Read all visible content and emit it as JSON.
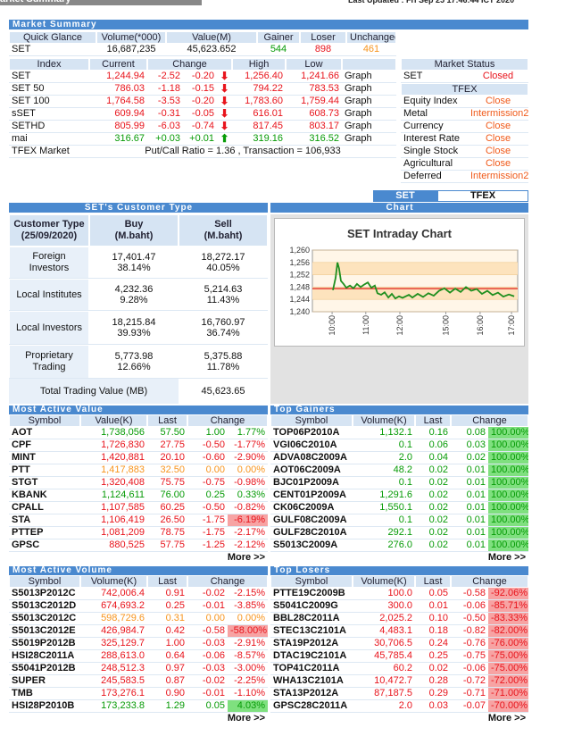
{
  "header": {
    "title": "arket Summary",
    "last_updated": "Last Updated : Fri Sep 25 17:46:44 ICT 2020"
  },
  "market_summary": {
    "title": "Market Summary",
    "quick_glance": {
      "columns": [
        "Quick Glance",
        "Volume(*000)",
        "Value(M)",
        "Gainer",
        "Loser",
        "Unchanged"
      ],
      "rows": [
        [
          "SET",
          "16,687,235",
          "45,623.652",
          "544",
          "898",
          "461"
        ]
      ]
    },
    "index": {
      "columns": [
        "Index",
        "Current",
        "Change",
        "High",
        "Low"
      ],
      "rows": [
        [
          "SET",
          "1,244.94",
          "-2.52",
          "-0.20",
          "1,256.40",
          "1,241.66",
          "Graph"
        ],
        [
          "SET 50",
          "786.03",
          "-1.18",
          "-0.15",
          "794.22",
          "783.53",
          "Graph"
        ],
        [
          "SET 100",
          "1,764.58",
          "-3.53",
          "-0.20",
          "1,783.60",
          "1,759.44",
          "Graph"
        ],
        [
          "sSET",
          "609.94",
          "-0.31",
          "-0.05",
          "616.01",
          "608.73",
          "Graph"
        ],
        [
          "SETHD",
          "805.99",
          "-6.03",
          "-0.74",
          "817.45",
          "803.17",
          "Graph"
        ],
        [
          "mai",
          "316.67",
          "+0.03",
          "+0.01",
          "319.16",
          "316.52",
          "Graph"
        ]
      ],
      "tfex": [
        "TFEX Market",
        "Put/Call Ratio = 1.36 , Transaction = 106,933"
      ]
    },
    "status": {
      "title": "Market Status",
      "rows": [
        [
          "SET",
          "Closed"
        ]
      ],
      "tfex_title": "TFEX",
      "tfex_rows": [
        [
          "Equity Index",
          "Close"
        ],
        [
          "Metal",
          "Intermission2"
        ],
        [
          "Currency",
          "Close"
        ],
        [
          "Interest Rate",
          "Close"
        ],
        [
          "Single Stock",
          "Close"
        ],
        [
          "Agricultural",
          "Close"
        ],
        [
          "Deferred",
          "Intermission2"
        ]
      ]
    }
  },
  "tabs": [
    "SET",
    "TFEX"
  ],
  "customer_type": {
    "title": "SET's Customer Type",
    "columns": [
      "Customer Type\n(25/09/2020)",
      "Buy\n(M.baht)",
      "Sell\n(M.baht)"
    ],
    "rows": [
      [
        "Foreign Investors",
        "17,401.47",
        "38.14%",
        "18,272.17",
        "40.05%"
      ],
      [
        "Local Institutes",
        "4,232.36",
        "9.28%",
        "5,214.63",
        "11.43%"
      ],
      [
        "Local Investors",
        "18,215.84",
        "39.93%",
        "16,760.97",
        "36.74%"
      ],
      [
        "Proprietary\nTrading",
        "5,773.98",
        "12.66%",
        "5,375.88",
        "11.78%"
      ]
    ],
    "total": [
      "Total Trading Value (MB)",
      "45,623.65"
    ]
  },
  "chart": {
    "header": "Chart",
    "chart_data": {
      "type": "line",
      "title": "SET Intraday Chart",
      "color": "#1f8f1f",
      "reference": 1247.5,
      "reference_color": "#e0201c",
      "grid": true,
      "xlim": [
        0,
        100
      ],
      "ylim": [
        1240,
        1260
      ],
      "yticks": [
        {
          "value": 1260,
          "label": "1,260"
        },
        {
          "value": 1256,
          "label": "1,256"
        },
        {
          "value": 1252,
          "label": "1,252"
        },
        {
          "value": 1248,
          "label": "1,248"
        },
        {
          "value": 1244,
          "label": "1,244"
        },
        {
          "value": 1240,
          "label": "1,240"
        }
      ],
      "xticks": [
        {
          "value": 9.6,
          "label": "10:00"
        },
        {
          "value": 26,
          "label": "11:00"
        },
        {
          "value": 42.6,
          "label": "12:00"
        },
        {
          "value": 65,
          "label": "15:00"
        },
        {
          "value": 81.7,
          "label": "16:00"
        },
        {
          "value": 97,
          "label": "17:00"
        }
      ],
      "x": [
        10.0,
        11.3,
        12.2,
        13.0,
        13.9,
        15.2,
        16.5,
        18.3,
        20.0,
        21.7,
        23.5,
        25.2,
        27.0,
        28.7,
        30.4,
        31.7,
        33.5,
        35.2,
        37.0,
        38.7,
        40.4,
        42.2,
        43.9,
        47.0,
        48.7,
        51.3,
        53.9,
        56.5,
        59.1,
        61.7,
        64.3,
        67.0,
        69.6,
        72.2,
        74.8,
        77.4,
        80.0,
        82.6,
        85.2,
        87.8,
        90.4,
        93.0,
        95.7,
        98.3
      ],
      "values": [
        1247,
        1251,
        1256,
        1254,
        1250,
        1249,
        1247.8,
        1248.5,
        1247.6,
        1249,
        1248,
        1248.8,
        1249.5,
        1247.8,
        1248.5,
        1246,
        1245.5,
        1246.3,
        1244.6,
        1245.8,
        1244.3,
        1245,
        1244.5,
        1245.5,
        1244.6,
        1245.8,
        1244.8,
        1246,
        1245.2,
        1246.8,
        1247.6,
        1246.2,
        1247.5,
        1246.4,
        1248,
        1246.8,
        1247.4,
        1245.8,
        1246.8,
        1245.4,
        1246.2,
        1244.9,
        1245.6,
        1245
      ]
    }
  },
  "active_value": {
    "title": "Most Active Value",
    "columns": [
      "Symbol",
      "Value(K)",
      "Last",
      "Change"
    ],
    "rows": [
      [
        "AOT",
        "1,738,056",
        "57.50",
        "1.00",
        "1.77%"
      ],
      [
        "CPF",
        "1,726,830",
        "27.75",
        "-0.50",
        "-1.77%"
      ],
      [
        "MINT",
        "1,420,881",
        "20.10",
        "-0.60",
        "-2.90%"
      ],
      [
        "PTT",
        "1,417,883",
        "32.50",
        "0.00",
        "0.00%"
      ],
      [
        "STGT",
        "1,320,408",
        "75.75",
        "-0.75",
        "-0.98%"
      ],
      [
        "KBANK",
        "1,124,611",
        "76.00",
        "0.25",
        "0.33%"
      ],
      [
        "CPALL",
        "1,107,585",
        "60.25",
        "-0.50",
        "-0.82%"
      ],
      [
        "STA",
        "1,106,419",
        "26.50",
        "-1.75",
        "-6.19%"
      ],
      [
        "PTTEP",
        "1,081,209",
        "78.75",
        "-1.75",
        "-2.17%"
      ],
      [
        "GPSC",
        "880,525",
        "57.75",
        "-1.25",
        "-2.12%"
      ]
    ],
    "pct_bg": [
      null,
      null,
      null,
      null,
      null,
      null,
      null,
      "#f7a3a3",
      null,
      null
    ],
    "more": "More >>"
  },
  "top_gainers": {
    "title": "Top Gainers",
    "columns": [
      "Symbol",
      "Volume(K)",
      "Last",
      "Change"
    ],
    "rows": [
      [
        "TOP06P2010A",
        "1,132.1",
        "0.16",
        "0.08",
        "100.00%"
      ],
      [
        "VGI06C2010A",
        "0.1",
        "0.06",
        "0.03",
        "100.00%"
      ],
      [
        "ADVA08C2009A",
        "2.0",
        "0.04",
        "0.02",
        "100.00%"
      ],
      [
        "AOT06C2009A",
        "48.2",
        "0.02",
        "0.01",
        "100.00%"
      ],
      [
        "BJC01P2009A",
        "0.1",
        "0.02",
        "0.01",
        "100.00%"
      ],
      [
        "CENT01P2009A",
        "1,291.6",
        "0.02",
        "0.01",
        "100.00%"
      ],
      [
        "CK06C2009A",
        "1,550.1",
        "0.02",
        "0.01",
        "100.00%"
      ],
      [
        "GULF08C2009A",
        "0.1",
        "0.02",
        "0.01",
        "100.00%"
      ],
      [
        "GULF28C2010A",
        "292.1",
        "0.02",
        "0.01",
        "100.00%"
      ],
      [
        "S5013C2009A",
        "276.0",
        "0.02",
        "0.01",
        "100.00%"
      ]
    ],
    "pct_bg": "#7fe07f",
    "more": "More >>"
  },
  "active_volume": {
    "title": "Most Active Volume",
    "columns": [
      "Symbol",
      "Volume(K)",
      "Last",
      "Change"
    ],
    "rows": [
      [
        "S5013P2012C",
        "742,006.4",
        "0.91",
        "-0.02",
        "-2.15%"
      ],
      [
        "S5013C2012D",
        "674,693.2",
        "0.25",
        "-0.01",
        "-3.85%"
      ],
      [
        "S5013C2012C",
        "598,729.6",
        "0.31",
        "0.00",
        "0.00%"
      ],
      [
        "S5013C2012E",
        "426,984.7",
        "0.42",
        "-0.58",
        "-58.00%"
      ],
      [
        "S5019P2012B",
        "325,129.7",
        "1.00",
        "-0.03",
        "-2.91%"
      ],
      [
        "HSI28C2011A",
        "288,613.0",
        "0.64",
        "-0.06",
        "-8.57%"
      ],
      [
        "S5041P2012B",
        "248,512.3",
        "0.97",
        "-0.03",
        "-3.00%"
      ],
      [
        "SUPER",
        "245,583.5",
        "0.87",
        "-0.02",
        "-2.25%"
      ],
      [
        "TMB",
        "173,276.1",
        "0.90",
        "-0.01",
        "-1.10%"
      ],
      [
        "HSI28P2010B",
        "173,233.8",
        "1.29",
        "0.05",
        "4.03%"
      ]
    ],
    "pct_bg": [
      null,
      null,
      null,
      "#f7a3a3",
      null,
      null,
      null,
      null,
      null,
      "#7fe07f"
    ],
    "more": "More >>"
  },
  "top_losers": {
    "title": "Top Losers",
    "columns": [
      "Symbol",
      "Volume(K)",
      "Last",
      "Change"
    ],
    "rows": [
      [
        "PTTE19C2009B",
        "100.0",
        "0.05",
        "-0.58",
        "-92.06%"
      ],
      [
        "S5041C2009G",
        "300.0",
        "0.01",
        "-0.06",
        "-85.71%"
      ],
      [
        "BBL28C2011A",
        "2,025.2",
        "0.10",
        "-0.50",
        "-83.33%"
      ],
      [
        "STEC13C2101A",
        "4,483.1",
        "0.18",
        "-0.82",
        "-82.00%"
      ],
      [
        "STA19P2012A",
        "30,706.5",
        "0.24",
        "-0.76",
        "-76.00%"
      ],
      [
        "DTAC19C2101A",
        "45,785.4",
        "0.25",
        "-0.75",
        "-75.00%"
      ],
      [
        "TOP41C2011A",
        "60.2",
        "0.02",
        "-0.06",
        "-75.00%"
      ],
      [
        "WHA13C2101A",
        "10,472.7",
        "0.28",
        "-0.72",
        "-72.00%"
      ],
      [
        "STA13P2012A",
        "87,187.5",
        "0.29",
        "-0.71",
        "-71.00%"
      ],
      [
        "GPSC28C2011A",
        "2.0",
        "0.03",
        "-0.07",
        "-70.00%"
      ]
    ],
    "pct_bg": "#f7a3a3",
    "more": "More >>"
  }
}
